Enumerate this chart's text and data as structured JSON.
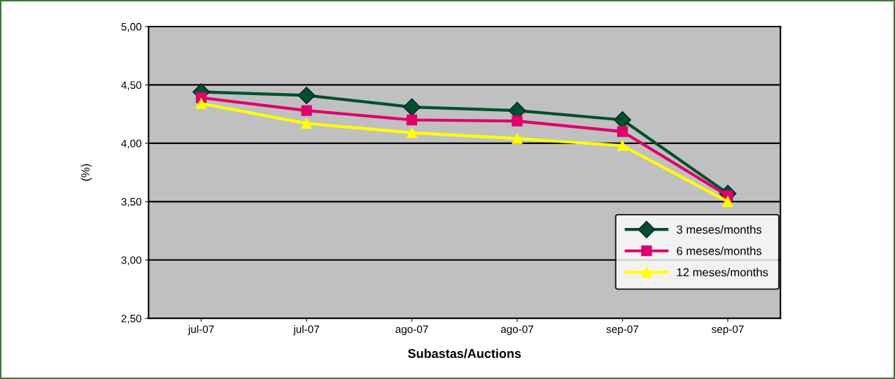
{
  "chart_data": {
    "type": "line",
    "ylabel": "(%)",
    "xlabel": "Subastas/Auctions",
    "categories": [
      "jul-07",
      "jul-07",
      "ago-07",
      "ago-07",
      "sep-07",
      "sep-07"
    ],
    "series": [
      {
        "name": "3 meses/months",
        "color": "#00502a",
        "marker": "diamond",
        "values": [
          4.44,
          4.41,
          4.31,
          4.28,
          4.2,
          3.57
        ]
      },
      {
        "name": "6 meses/months",
        "color": "#e0006a",
        "marker": "square",
        "values": [
          4.39,
          4.28,
          4.2,
          4.19,
          4.1,
          3.55
        ]
      },
      {
        "name": "12 meses/months",
        "color": "#ffff00",
        "marker": "triangle",
        "values": [
          4.34,
          4.17,
          4.09,
          4.04,
          3.98,
          3.5
        ]
      }
    ],
    "ylim": [
      2.5,
      5.0
    ],
    "yticks": [
      {
        "value": 2.5,
        "label": "2,50"
      },
      {
        "value": 3.0,
        "label": "3,00"
      },
      {
        "value": 3.5,
        "label": "3,50"
      },
      {
        "value": 4.0,
        "label": "4,00"
      },
      {
        "value": 4.5,
        "label": "4,50"
      },
      {
        "value": 5.0,
        "label": "5,00"
      }
    ],
    "grid": "y",
    "legend": "bottom right"
  }
}
